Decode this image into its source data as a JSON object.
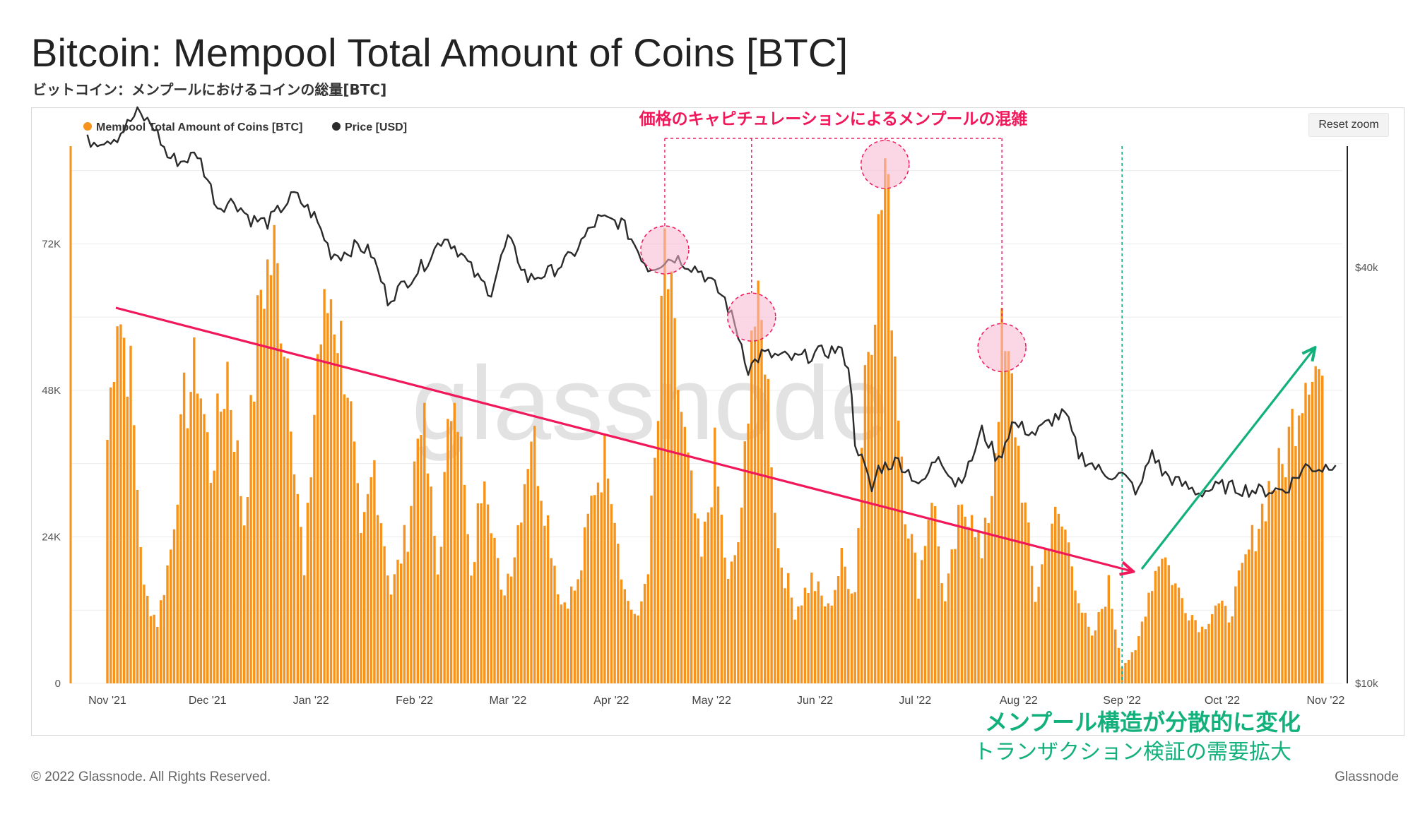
{
  "header": {
    "title": "Bitcoin: Mempool Total Amount of Coins [BTC]",
    "subtitle": "ビットコイン：メンプールにおけるコインの総量[BTC]"
  },
  "toolbar": {
    "reset_zoom": "Reset zoom"
  },
  "watermark": "glassnode",
  "footer": {
    "copyright": "© 2022 Glassnode. All Rights Reserved.",
    "brand": "Glassnode"
  },
  "annotations": {
    "capitulation": "価格のキャピチュレーションによるメンプールの混雑",
    "structure_change": "メンプール構造が分散的に変化",
    "demand": "トランザクション検証の需要拡大"
  },
  "colors": {
    "bars": "#f7931a",
    "price": "#2b2b2b",
    "trend_down": "#f0185a",
    "trend_up": "#12b07a",
    "highlight_fill": "#f7b6cf"
  },
  "chart_data": {
    "type": "bar",
    "legend": [
      {
        "name": "Mempool Total Amount of Coins [BTC]",
        "color": "#f7931a",
        "marker": "dot"
      },
      {
        "name": "Price [USD]",
        "color": "#2b2b2b",
        "marker": "dot"
      }
    ],
    "legend_position": "top-left",
    "x_ticks": [
      "Nov '21",
      "Dec '21",
      "Jan '22",
      "Feb '22",
      "Mar '22",
      "Apr '22",
      "May '22",
      "Jun '22",
      "Jul '22",
      "Aug '22",
      "Sep '22",
      "Oct '22",
      "Nov '22"
    ],
    "y_left": {
      "ticks": [
        "0",
        "24K",
        "48K",
        "72K"
      ],
      "range": [
        0,
        88000
      ]
    },
    "y_right": {
      "ticks": [
        "$10k",
        "$40k"
      ],
      "scale": "log",
      "range": [
        10000,
        60000
      ]
    },
    "grid": true,
    "mempool_series": {
      "name": "Mempool Total Amount of Coins [BTC]",
      "anchors": [
        [
          "2021-11-01",
          40000
        ],
        [
          "2021-11-04",
          63000
        ],
        [
          "2021-11-08",
          50000
        ],
        [
          "2021-11-12",
          15000
        ],
        [
          "2021-11-16",
          10000
        ],
        [
          "2021-11-20",
          22000
        ],
        [
          "2021-11-24",
          45000
        ],
        [
          "2021-11-28",
          52000
        ],
        [
          "2021-12-02",
          35000
        ],
        [
          "2021-12-07",
          52000
        ],
        [
          "2021-12-12",
          27000
        ],
        [
          "2021-12-17",
          65000
        ],
        [
          "2021-12-21",
          70000
        ],
        [
          "2021-12-25",
          54000
        ],
        [
          "2021-12-30",
          17000
        ],
        [
          "2022-01-03",
          54000
        ],
        [
          "2022-01-07",
          64000
        ],
        [
          "2022-01-12",
          50000
        ],
        [
          "2022-01-16",
          22000
        ],
        [
          "2022-01-20",
          36000
        ],
        [
          "2022-01-25",
          15000
        ],
        [
          "2022-01-30",
          25000
        ],
        [
          "2022-02-03",
          46000
        ],
        [
          "2022-02-08",
          18000
        ],
        [
          "2022-02-13",
          53000
        ],
        [
          "2022-02-18",
          16000
        ],
        [
          "2022-02-22",
          38000
        ],
        [
          "2022-02-27",
          14000
        ],
        [
          "2022-03-03",
          22000
        ],
        [
          "2022-03-08",
          42000
        ],
        [
          "2022-03-12",
          30000
        ],
        [
          "2022-03-17",
          13000
        ],
        [
          "2022-03-22",
          16000
        ],
        [
          "2022-03-27",
          33000
        ],
        [
          "2022-03-31",
          38000
        ],
        [
          "2022-04-05",
          15000
        ],
        [
          "2022-04-09",
          10000
        ],
        [
          "2022-04-12",
          20000
        ],
        [
          "2022-04-15",
          43000
        ],
        [
          "2022-04-17",
          71000
        ],
        [
          "2022-04-20",
          54000
        ],
        [
          "2022-04-24",
          35000
        ],
        [
          "2022-04-28",
          20000
        ],
        [
          "2022-05-02",
          37000
        ],
        [
          "2022-05-06",
          16000
        ],
        [
          "2022-05-10",
          26000
        ],
        [
          "2022-05-13",
          60000
        ],
        [
          "2022-05-17",
          56000
        ],
        [
          "2022-05-21",
          22000
        ],
        [
          "2022-05-26",
          12000
        ],
        [
          "2022-05-31",
          17000
        ],
        [
          "2022-06-05",
          12000
        ],
        [
          "2022-06-09",
          20000
        ],
        [
          "2022-06-13",
          15000
        ],
        [
          "2022-06-16",
          52000
        ],
        [
          "2022-06-20",
          72000
        ],
        [
          "2022-06-22",
          85000
        ],
        [
          "2022-06-25",
          55000
        ],
        [
          "2022-06-28",
          30000
        ],
        [
          "2022-07-02",
          16000
        ],
        [
          "2022-07-06",
          32000
        ],
        [
          "2022-07-10",
          13000
        ],
        [
          "2022-07-14",
          26000
        ],
        [
          "2022-07-18",
          30000
        ],
        [
          "2022-07-21",
          20000
        ],
        [
          "2022-07-24",
          32000
        ],
        [
          "2022-07-27",
          55000
        ],
        [
          "2022-07-30",
          48000
        ],
        [
          "2022-08-03",
          28000
        ],
        [
          "2022-08-06",
          14000
        ],
        [
          "2022-08-11",
          27000
        ],
        [
          "2022-08-15",
          25000
        ],
        [
          "2022-08-20",
          12000
        ],
        [
          "2022-08-23",
          7000
        ],
        [
          "2022-08-28",
          16000
        ],
        [
          "2022-09-01",
          3000
        ],
        [
          "2022-09-05",
          5000
        ],
        [
          "2022-09-09",
          15000
        ],
        [
          "2022-09-13",
          22000
        ],
        [
          "2022-09-17",
          16000
        ],
        [
          "2022-09-21",
          12000
        ],
        [
          "2022-09-25",
          9000
        ],
        [
          "2022-09-29",
          13000
        ],
        [
          "2022-10-03",
          11000
        ],
        [
          "2022-10-07",
          18000
        ],
        [
          "2022-10-11",
          25000
        ],
        [
          "2022-10-15",
          32000
        ],
        [
          "2022-10-19",
          35000
        ],
        [
          "2022-10-23",
          45000
        ],
        [
          "2022-10-27",
          54000
        ],
        [
          "2022-10-31",
          50000
        ]
      ]
    },
    "price_series": {
      "name": "Price [USD]",
      "anchors": [
        [
          "2021-10-26",
          61000
        ],
        [
          "2021-11-01",
          61500
        ],
        [
          "2021-11-04",
          62000
        ],
        [
          "2021-11-10",
          67000
        ],
        [
          "2021-11-15",
          64000
        ],
        [
          "2021-11-19",
          58000
        ],
        [
          "2021-11-23",
          57000
        ],
        [
          "2021-11-28",
          58500
        ],
        [
          "2021-12-04",
          49000
        ],
        [
          "2021-12-09",
          50000
        ],
        [
          "2021-12-14",
          47000
        ],
        [
          "2021-12-19",
          46500
        ],
        [
          "2021-12-27",
          51000
        ],
        [
          "2022-01-02",
          47500
        ],
        [
          "2022-01-07",
          42000
        ],
        [
          "2022-01-10",
          41800
        ],
        [
          "2022-01-15",
          43100
        ],
        [
          "2022-01-19",
          42000
        ],
        [
          "2022-01-24",
          36000
        ],
        [
          "2022-01-28",
          37500
        ],
        [
          "2022-02-04",
          40500
        ],
        [
          "2022-02-10",
          44500
        ],
        [
          "2022-02-14",
          42500
        ],
        [
          "2022-02-20",
          38500
        ],
        [
          "2022-02-24",
          37000
        ],
        [
          "2022-03-01",
          44000
        ],
        [
          "2022-03-07",
          38500
        ],
        [
          "2022-03-14",
          39500
        ],
        [
          "2022-03-20",
          41500
        ],
        [
          "2022-03-28",
          47000
        ],
        [
          "2022-04-04",
          46500
        ],
        [
          "2022-04-12",
          40000
        ],
        [
          "2022-04-20",
          41500
        ],
        [
          "2022-04-28",
          39500
        ],
        [
          "2022-05-05",
          36000
        ],
        [
          "2022-05-10",
          31000
        ],
        [
          "2022-05-12",
          28500
        ],
        [
          "2022-05-16",
          30000
        ],
        [
          "2022-05-26",
          29500
        ],
        [
          "2022-06-01",
          30000
        ],
        [
          "2022-06-08",
          30500
        ],
        [
          "2022-06-11",
          29000
        ],
        [
          "2022-06-13",
          22500
        ],
        [
          "2022-06-18",
          19000
        ],
        [
          "2022-06-20",
          20500
        ],
        [
          "2022-06-26",
          21000
        ],
        [
          "2022-07-03",
          19300
        ],
        [
          "2022-07-08",
          21500
        ],
        [
          "2022-07-13",
          19500
        ],
        [
          "2022-07-17",
          20500
        ],
        [
          "2022-07-21",
          23200
        ],
        [
          "2022-07-26",
          21000
        ],
        [
          "2022-07-30",
          23800
        ],
        [
          "2022-08-06",
          23000
        ],
        [
          "2022-08-12",
          24300
        ],
        [
          "2022-08-15",
          24500
        ],
        [
          "2022-08-19",
          21500
        ],
        [
          "2022-08-26",
          20200
        ],
        [
          "2022-09-01",
          20000
        ],
        [
          "2022-09-06",
          18900
        ],
        [
          "2022-09-10",
          21700
        ],
        [
          "2022-09-13",
          20200
        ],
        [
          "2022-09-18",
          19500
        ],
        [
          "2022-09-24",
          18900
        ],
        [
          "2022-10-01",
          19300
        ],
        [
          "2022-10-12",
          19000
        ],
        [
          "2022-10-20",
          19100
        ],
        [
          "2022-10-26",
          20600
        ],
        [
          "2022-10-31",
          20500
        ],
        [
          "2022-11-04",
          21000
        ]
      ]
    }
  }
}
